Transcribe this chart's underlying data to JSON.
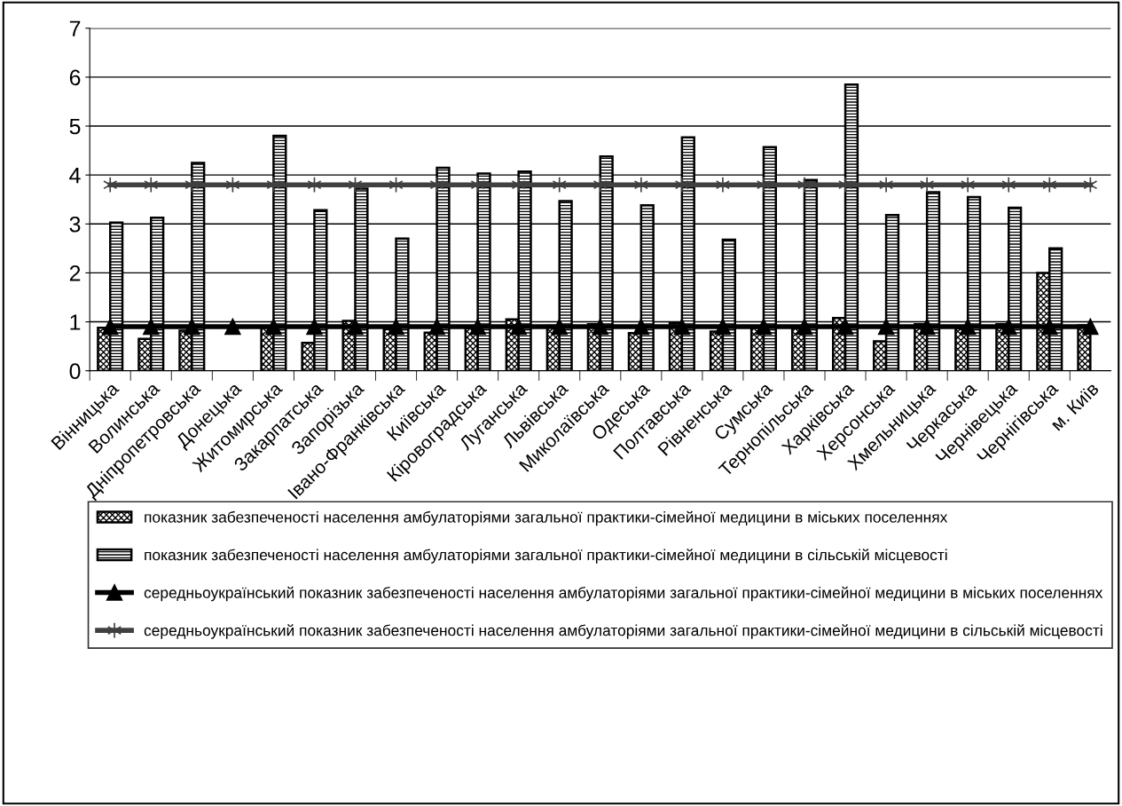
{
  "chart_data": {
    "type": "bar",
    "categories": [
      "Вінницька",
      "Волинська",
      "Дніпропетровська",
      "Донецька",
      "Житомирська",
      "Закарпатська",
      "Запорізька",
      "Івано-Франківська",
      "Київська",
      "Кіровоградська",
      "Луганська",
      "Львівська",
      "Миколаївська",
      "Одеська",
      "Полтавська",
      "Рівненська",
      "Сумська",
      "Тернопільська",
      "Харківська",
      "Херсонська",
      "Хмельницька",
      "Черкаська",
      "Чернівецька",
      "Чернігівська",
      "м. Київ"
    ],
    "series": [
      {
        "name": "показник забезпеченості населення амбулаторіями загальної практики-сімейної медицини в міських поселеннях",
        "color": "#000000",
        "values": [
          0.88,
          0.65,
          0.82,
          null,
          0.88,
          0.57,
          1.02,
          0.85,
          0.78,
          0.87,
          1.05,
          0.92,
          0.95,
          0.77,
          0.97,
          0.8,
          0.88,
          0.87,
          1.08,
          0.6,
          0.95,
          0.87,
          0.95,
          2.0,
          0.93
        ]
      },
      {
        "name": "показник забезпеченості населення амбулаторіями загальної практики-сімейної медицини в сільській місцевості",
        "color": "#000000",
        "values": [
          3.03,
          3.13,
          4.25,
          null,
          4.8,
          3.28,
          3.72,
          2.7,
          4.15,
          4.03,
          4.07,
          3.47,
          4.38,
          3.38,
          4.77,
          2.68,
          4.57,
          3.9,
          5.85,
          3.18,
          3.65,
          3.55,
          3.33,
          2.5,
          null
        ]
      },
      {
        "name": "середньоукраїнський показник забезпеченості населення амбулаторіями загальної практики-сімейної медицини в міських поселеннях",
        "type": "line",
        "marker": "triangle",
        "color": "#000000",
        "values": [
          0.9,
          0.9,
          0.9,
          0.9,
          0.9,
          0.9,
          0.9,
          0.9,
          0.9,
          0.9,
          0.9,
          0.9,
          0.9,
          0.9,
          0.9,
          0.9,
          0.9,
          0.9,
          0.9,
          0.9,
          0.9,
          0.9,
          0.9,
          0.9,
          0.9
        ]
      },
      {
        "name": "середньоукраїнський показник забезпеченості населення амбулаторіями загальної практики-сімейної медицини в сільській місцевості",
        "type": "line",
        "marker": "cross",
        "color": "#404040",
        "values": [
          3.8,
          3.8,
          3.8,
          3.8,
          3.8,
          3.8,
          3.8,
          3.8,
          3.8,
          3.8,
          3.8,
          3.8,
          3.8,
          3.8,
          3.8,
          3.8,
          3.8,
          3.8,
          3.8,
          3.8,
          3.8,
          3.8,
          3.8,
          3.8,
          3.8
        ]
      }
    ],
    "ylim": [
      0,
      7
    ],
    "yticks": [
      0,
      1,
      2,
      3,
      4,
      5,
      6,
      7
    ],
    "grid": "y",
    "legend": "bottom"
  }
}
